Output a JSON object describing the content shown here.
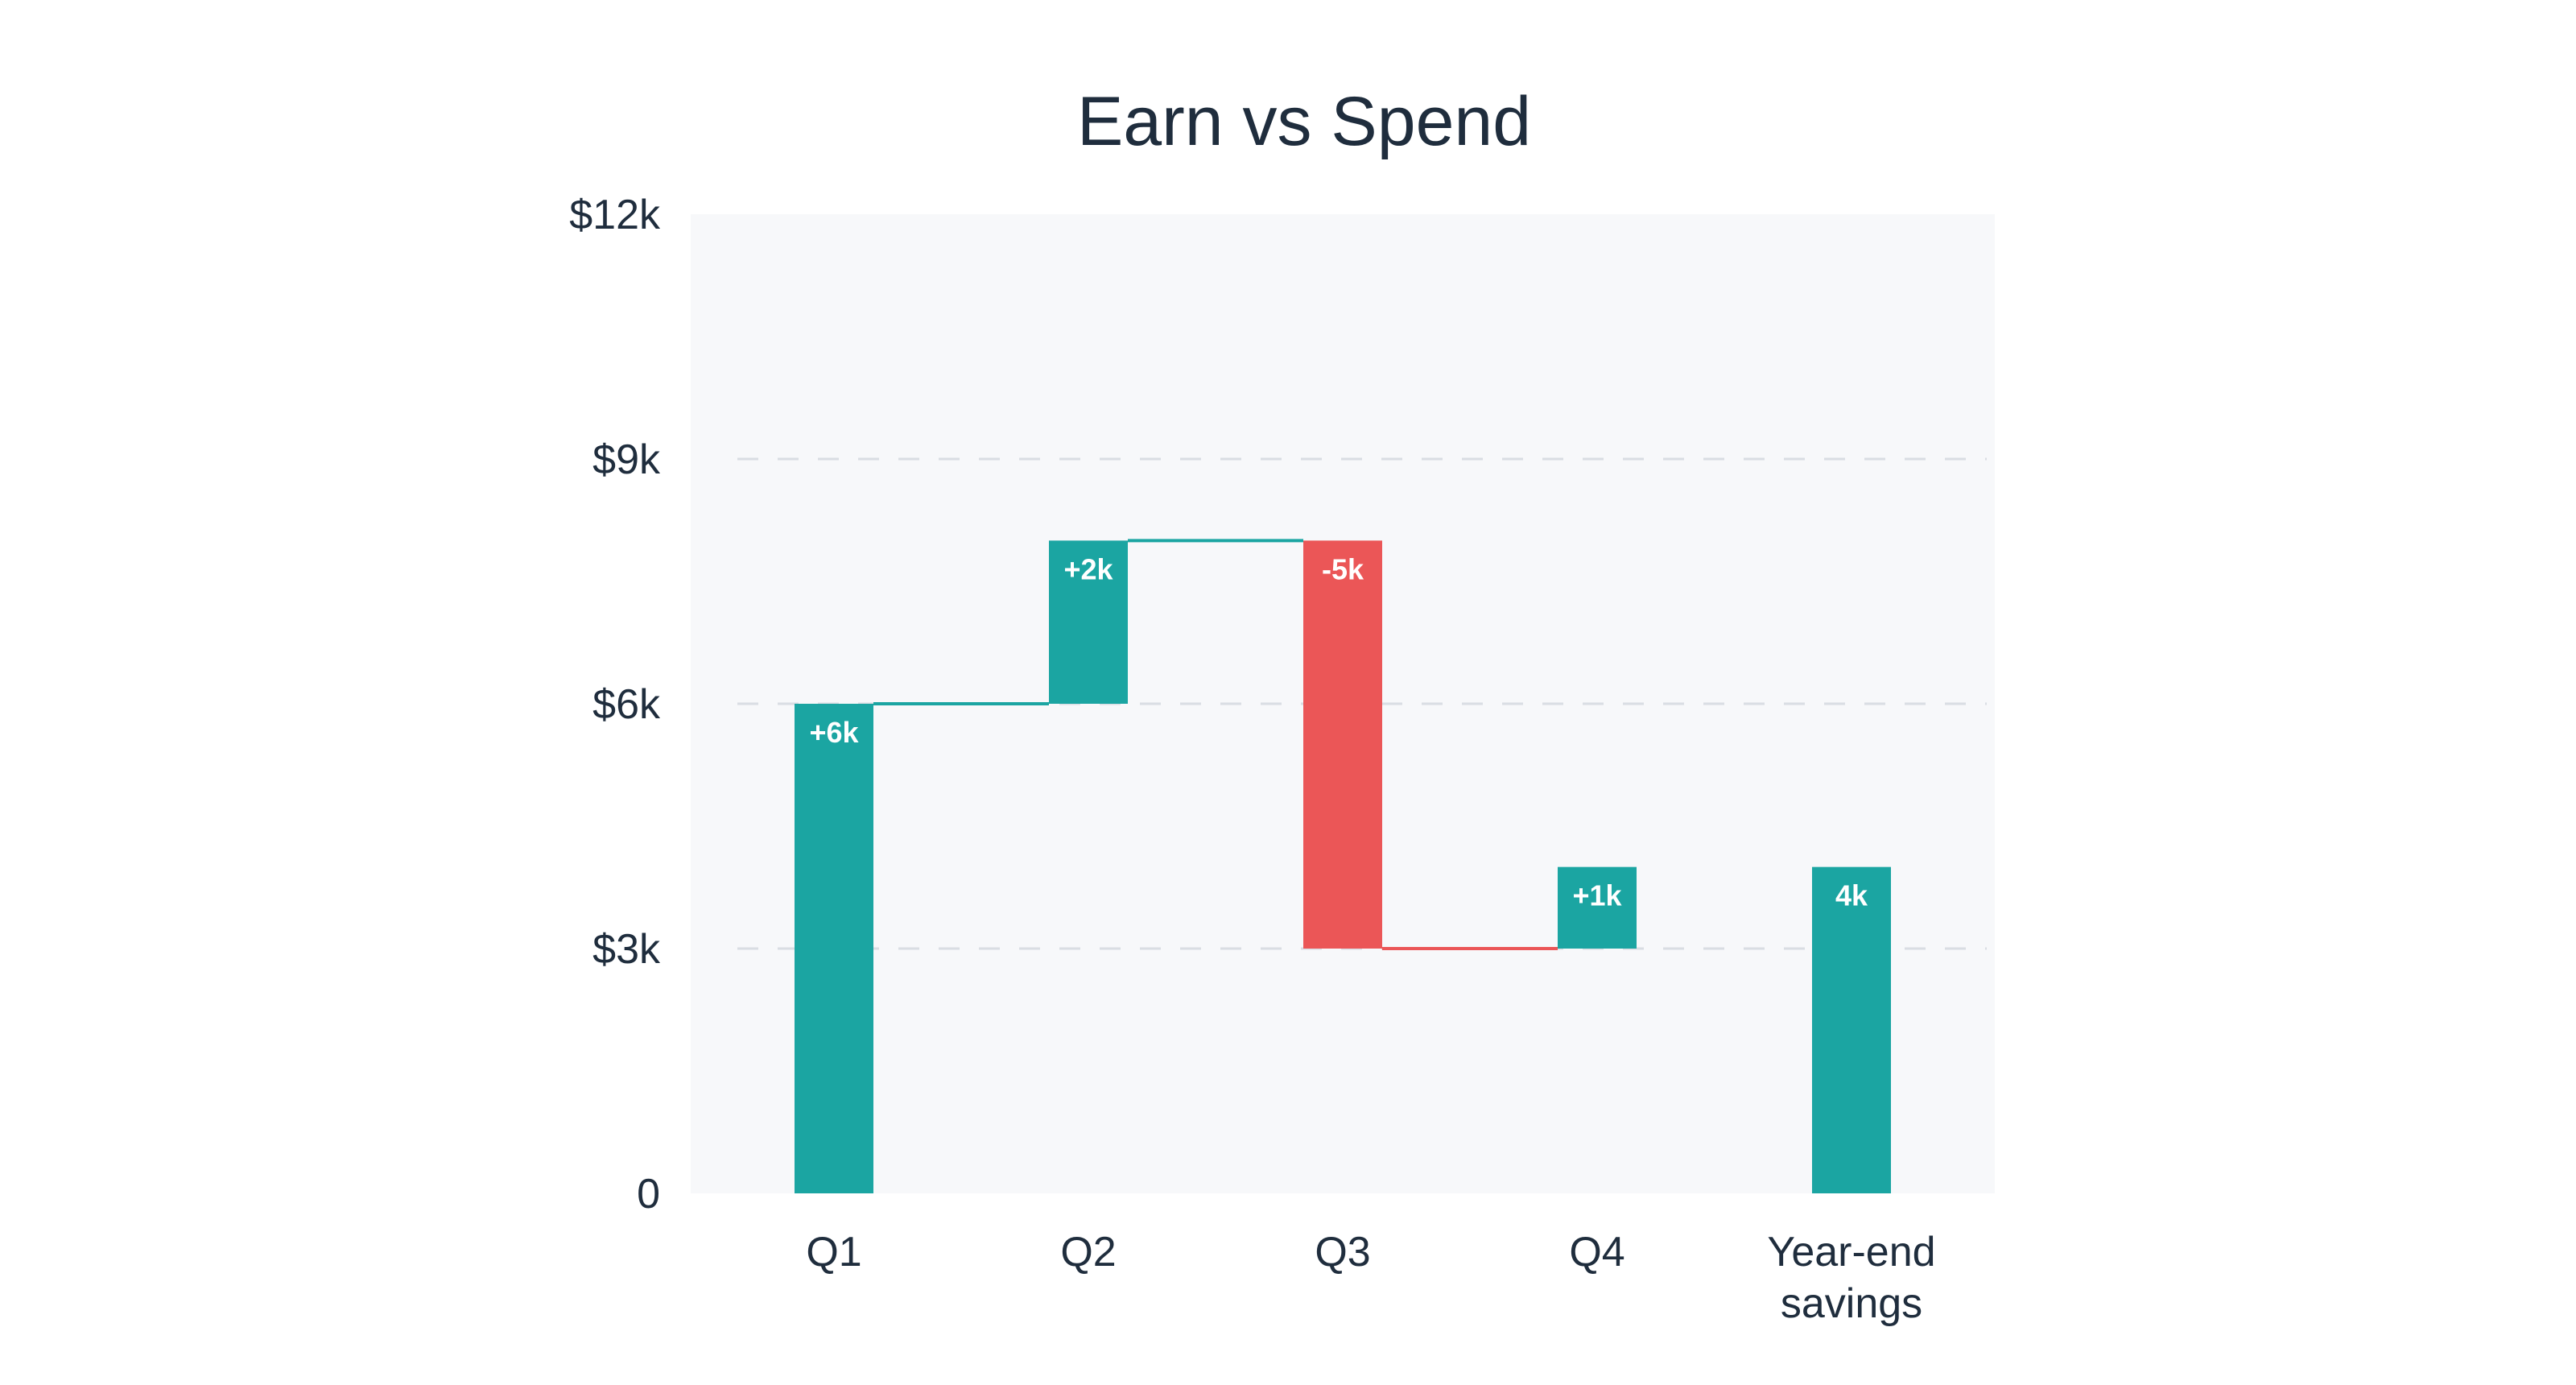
{
  "chart_data": {
    "type": "waterfall",
    "title": "Earn vs Spend",
    "xlabel": "",
    "ylabel": "",
    "ylim": [
      0,
      12000
    ],
    "yticks": [
      {
        "value": 0,
        "label": "0"
      },
      {
        "value": 3000,
        "label": "$3k"
      },
      {
        "value": 6000,
        "label": "$6k"
      },
      {
        "value": 9000,
        "label": "$9k"
      },
      {
        "value": 12000,
        "label": "$12k"
      }
    ],
    "grid": true,
    "legend": "none",
    "categories": [
      [
        "Q1"
      ],
      [
        "Q2"
      ],
      [
        "Q3"
      ],
      [
        "Q4"
      ],
      [
        "Year-end",
        "savings"
      ]
    ],
    "steps": [
      {
        "kind": "delta",
        "value": 6000,
        "label": "+6k"
      },
      {
        "kind": "delta",
        "value": 2000,
        "label": "+2k"
      },
      {
        "kind": "delta",
        "value": -5000,
        "label": "-5k"
      },
      {
        "kind": "delta",
        "value": 1000,
        "label": "+1k"
      },
      {
        "kind": "total",
        "value": 4000,
        "label": "4k"
      }
    ],
    "colors": {
      "increase": "#1ba5a2",
      "decrease": "#eb5657",
      "total": "#1ba5a2",
      "plot_background": "#f7f8fa",
      "text": "#1f2d3d"
    }
  }
}
